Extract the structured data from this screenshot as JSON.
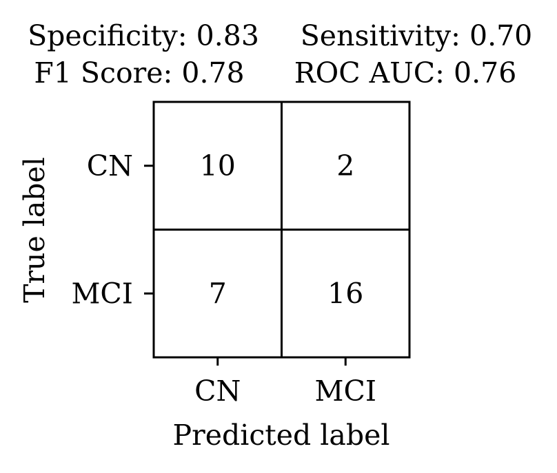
{
  "chart_data": {
    "type": "heatmap",
    "title_lines": [
      [
        "Specificity: 0.83",
        "Sensitivity: 0.70"
      ],
      [
        "F1 Score: 0.78",
        "ROC AUC: 0.76"
      ]
    ],
    "xlabel": "Predicted label",
    "ylabel": "True label",
    "x_categories": [
      "CN",
      "MCI"
    ],
    "y_categories": [
      "CN",
      "MCI"
    ],
    "values": [
      [
        10,
        2
      ],
      [
        7,
        16
      ]
    ],
    "colors": {
      "text": "#000000",
      "background": "#ffffff",
      "cell": "#ffffff"
    },
    "grid": true,
    "legend": "none"
  }
}
